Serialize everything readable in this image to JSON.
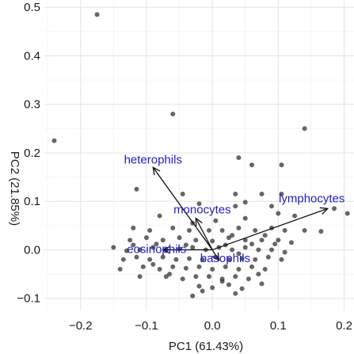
{
  "chart_data": {
    "type": "scatter",
    "title": "",
    "xlabel": "PC1 (61.43%)",
    "ylabel": "PC2 (21.85%)",
    "xlim": [
      -0.255,
      0.215
    ],
    "ylim": [
      -0.125,
      0.515
    ],
    "x_ticks": [
      -0.2,
      -0.1,
      0.0,
      0.1,
      0.2
    ],
    "x_tick_labels": [
      "−0.2",
      "−0.1",
      "0.0",
      "0.1",
      "0.2"
    ],
    "y_ticks": [
      -0.1,
      0.0,
      0.1,
      0.2,
      0.3,
      0.4,
      0.5
    ],
    "y_tick_labels": [
      "−0.1",
      "0.0",
      "0.1",
      "0.2",
      "0.3",
      "0.4",
      "0.5"
    ],
    "grid": true,
    "point_color": "#333333",
    "arrow_color": "#111111",
    "label_color": "#2020c0",
    "loadings": [
      {
        "name": "heterophils",
        "x": -0.09,
        "y": 0.17
      },
      {
        "name": "lymphocytes",
        "x": 0.175,
        "y": 0.085
      },
      {
        "name": "monocytes",
        "x": -0.025,
        "y": 0.065
      },
      {
        "name": "eosinophils",
        "x": -0.075,
        "y": 0.0
      },
      {
        "name": "basophils",
        "x": 0.01,
        "y": -0.022
      }
    ],
    "points": [
      [
        -0.175,
        0.485
      ],
      [
        -0.24,
        0.225
      ],
      [
        -0.06,
        0.28
      ],
      [
        0.14,
        0.25
      ],
      [
        0.04,
        0.19
      ],
      [
        0.06,
        0.175
      ],
      [
        0.105,
        0.175
      ],
      [
        -0.115,
        0.125
      ],
      [
        -0.045,
        0.115
      ],
      [
        0.035,
        0.115
      ],
      [
        0.075,
        0.115
      ],
      [
        0.105,
        0.115
      ],
      [
        -0.02,
        0.095
      ],
      [
        0.035,
        0.09
      ],
      [
        0.05,
        0.098
      ],
      [
        0.09,
        0.09
      ],
      [
        0.185,
        0.085
      ],
      [
        0.205,
        0.075
      ],
      [
        -0.08,
        0.07
      ],
      [
        -0.03,
        0.055
      ],
      [
        0.005,
        0.06
      ],
      [
        0.05,
        0.065
      ],
      [
        0.1,
        0.075
      ],
      [
        0.125,
        0.07
      ],
      [
        -0.12,
        0.045
      ],
      [
        -0.095,
        0.04
      ],
      [
        -0.06,
        0.045
      ],
      [
        -0.035,
        0.04
      ],
      [
        -0.005,
        0.04
      ],
      [
        0.015,
        0.04
      ],
      [
        0.04,
        0.045
      ],
      [
        0.065,
        0.04
      ],
      [
        0.09,
        0.045
      ],
      [
        0.11,
        0.04
      ],
      [
        0.14,
        0.04
      ],
      [
        0.165,
        0.038
      ],
      [
        -0.125,
        0.02
      ],
      [
        -0.1,
        0.025
      ],
      [
        -0.075,
        0.02
      ],
      [
        -0.05,
        0.025
      ],
      [
        -0.025,
        0.02
      ],
      [
        0.0,
        0.018
      ],
      [
        0.025,
        0.025
      ],
      [
        0.05,
        0.02
      ],
      [
        0.075,
        0.02
      ],
      [
        0.1,
        0.02
      ],
      [
        0.12,
        0.015
      ],
      [
        0.08,
        0.03
      ],
      [
        -0.15,
        0.005
      ],
      [
        -0.13,
        -0.002
      ],
      [
        -0.11,
        0.0
      ],
      [
        -0.09,
        0.005
      ],
      [
        -0.07,
        0.0
      ],
      [
        -0.05,
        0.002
      ],
      [
        -0.03,
        0.005
      ],
      [
        -0.01,
        0.0
      ],
      [
        0.01,
        0.005
      ],
      [
        0.03,
        0.0
      ],
      [
        0.05,
        0.005
      ],
      [
        0.07,
        0.0
      ],
      [
        0.09,
        0.0
      ],
      [
        0.11,
        -0.005
      ],
      [
        0.02,
        0.01
      ],
      [
        -0.085,
        0.012
      ],
      [
        0.04,
        -0.008
      ],
      [
        0.095,
        0.012
      ],
      [
        -0.135,
        -0.02
      ],
      [
        -0.115,
        -0.015
      ],
      [
        -0.095,
        -0.02
      ],
      [
        -0.075,
        -0.015
      ],
      [
        -0.055,
        -0.02
      ],
      [
        -0.035,
        -0.018
      ],
      [
        -0.015,
        -0.02
      ],
      [
        0.005,
        -0.015
      ],
      [
        0.025,
        -0.02
      ],
      [
        0.045,
        -0.018
      ],
      [
        0.065,
        -0.02
      ],
      [
        0.085,
        -0.015
      ],
      [
        0.105,
        -0.02
      ],
      [
        -0.14,
        -0.04
      ],
      [
        -0.105,
        -0.035
      ],
      [
        -0.08,
        -0.04
      ],
      [
        -0.06,
        -0.035
      ],
      [
        -0.04,
        -0.038
      ],
      [
        -0.02,
        -0.035
      ],
      [
        0.0,
        -0.04
      ],
      [
        0.02,
        -0.035
      ],
      [
        0.04,
        -0.04
      ],
      [
        0.06,
        -0.035
      ],
      [
        0.08,
        -0.04
      ],
      [
        -0.11,
        -0.055
      ],
      [
        -0.07,
        -0.055
      ],
      [
        -0.045,
        -0.06
      ],
      [
        -0.025,
        -0.055
      ],
      [
        -0.005,
        -0.055
      ],
      [
        0.015,
        -0.06
      ],
      [
        0.035,
        -0.055
      ],
      [
        0.055,
        -0.06
      ],
      [
        -0.02,
        -0.075
      ],
      [
        0.0,
        -0.078
      ],
      [
        0.025,
        -0.072
      ],
      [
        0.045,
        -0.08
      ],
      [
        0.075,
        -0.07
      ],
      [
        -0.03,
        -0.095
      ],
      [
        0.035,
        -0.09
      ],
      [
        -0.015,
        -0.085
      ],
      [
        0.015,
        -0.065
      ],
      [
        -0.065,
        -0.05
      ],
      [
        0.07,
        -0.05
      ],
      [
        -0.09,
        -0.03
      ],
      [
        0.03,
        0.03
      ],
      [
        -0.04,
        0.01
      ],
      [
        0.06,
        0.012
      ],
      [
        -0.12,
        0.01
      ]
    ]
  }
}
